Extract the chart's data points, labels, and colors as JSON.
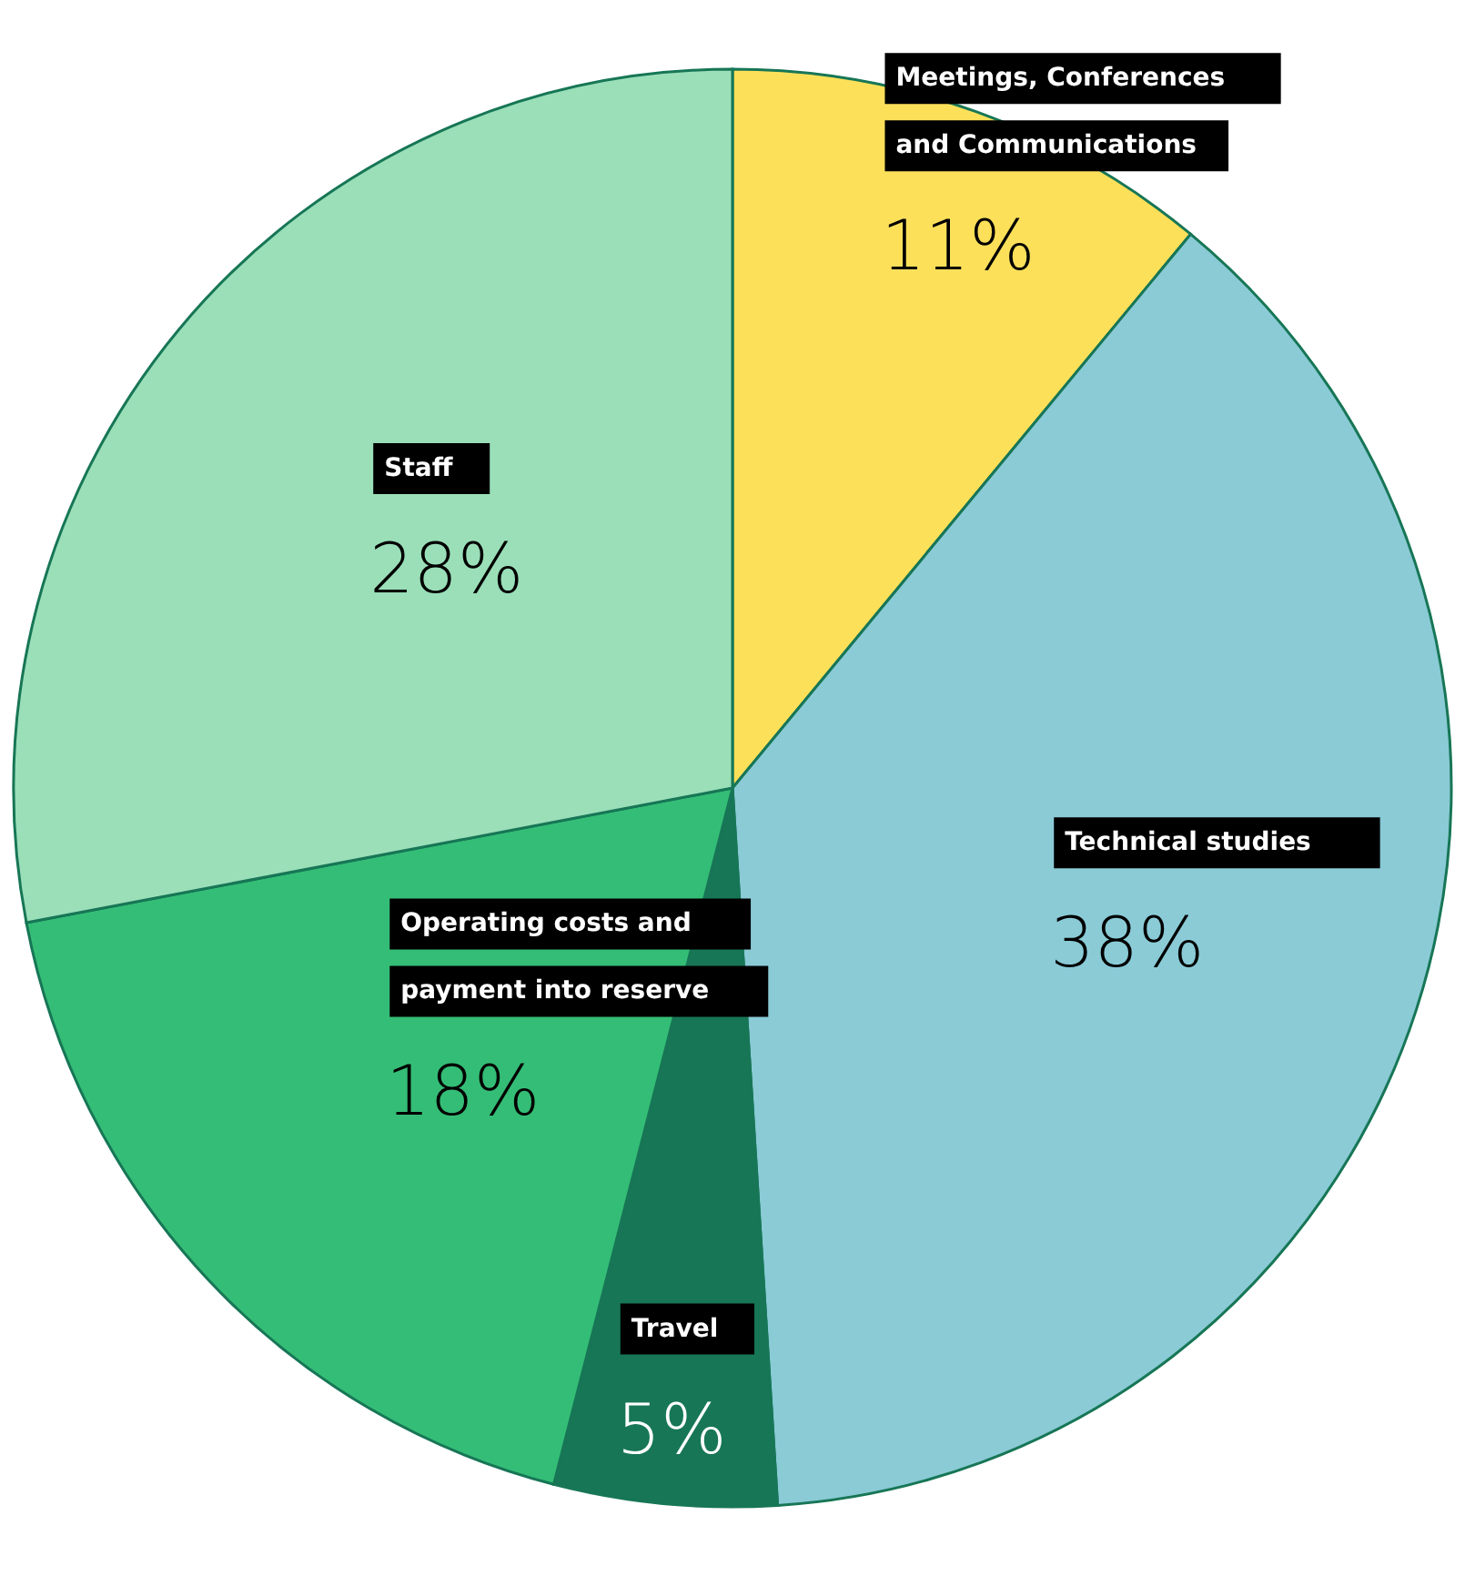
{
  "chart_data": {
    "type": "pie",
    "categories": [
      "Meetings, Conferences and Communications",
      "Technical studies",
      "Travel",
      "Operating costs and payment into reserve",
      "Staff"
    ],
    "values": [
      11,
      38,
      5,
      18,
      28
    ],
    "colors": [
      "#fde05a",
      "#8acbd6",
      "#177656",
      "#34bd76",
      "#9adfb8"
    ],
    "value_labels": [
      "11%",
      "38%",
      "5%",
      "18%",
      "28%"
    ]
  }
}
